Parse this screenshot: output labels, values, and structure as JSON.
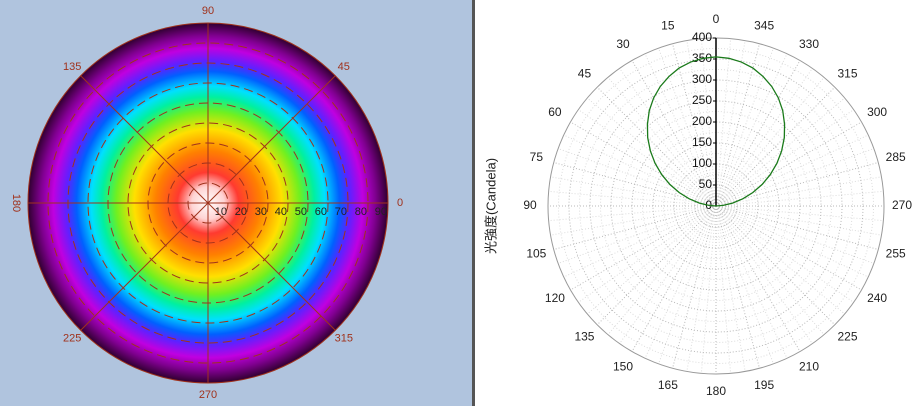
{
  "chart_data": [
    {
      "type": "polar_map",
      "angle_ticks": [
        0,
        45,
        90,
        135,
        180,
        225,
        270,
        315
      ],
      "rlim": [
        0,
        90
      ],
      "rticks": [
        10,
        20,
        30,
        40,
        50,
        60,
        70,
        80,
        90
      ]
    },
    {
      "type": "polar",
      "y_label": "光強度(Candela)",
      "angle_ticks": [
        0,
        15,
        30,
        45,
        60,
        75,
        90,
        105,
        120,
        135,
        150,
        165,
        180,
        195,
        210,
        225,
        240,
        255,
        270,
        285,
        300,
        315,
        330,
        345
      ],
      "ylim": [
        0,
        400
      ],
      "yticks": [
        0,
        50,
        100,
        150,
        200,
        250,
        300,
        350,
        400
      ],
      "color": "#1a7a1a",
      "x": [
        270,
        275,
        280,
        285,
        290,
        295,
        300,
        305,
        310,
        315,
        320,
        325,
        330,
        335,
        340,
        345,
        350,
        355,
        0,
        5,
        10,
        15,
        20,
        25,
        30,
        35,
        40,
        45,
        50,
        55,
        60,
        65,
        70,
        75,
        80,
        85,
        90
      ],
      "values": [
        0,
        17,
        40,
        66,
        93,
        121,
        149,
        177,
        204,
        230,
        254,
        277,
        297,
        314,
        328,
        340,
        348,
        353,
        355,
        353,
        348,
        340,
        328,
        314,
        297,
        277,
        254,
        230,
        204,
        177,
        149,
        121,
        93,
        66,
        40,
        17,
        0
      ]
    }
  ]
}
